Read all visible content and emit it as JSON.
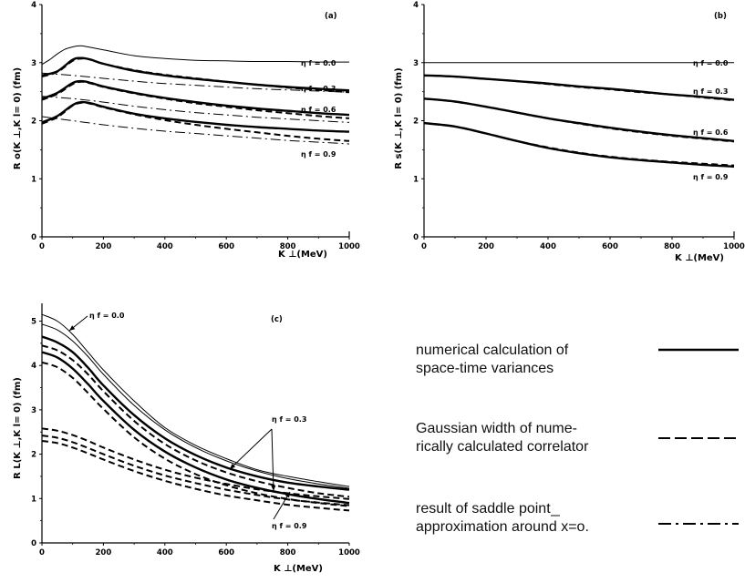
{
  "chart_data": [
    {
      "type": "line",
      "panel_label": "(a)",
      "xlabel": "K ⊥(MeV)",
      "ylabel": "R o(K ⊥,K l= 0) (fm)",
      "xlim": [
        0,
        1000
      ],
      "ylim": [
        0,
        4
      ],
      "x_ticks": [
        "0",
        "200",
        "400",
        "600",
        "800",
        "1000"
      ],
      "y_ticks": [
        "0",
        "1",
        "2",
        "3",
        "4"
      ],
      "annotations": [
        "η f = 0.0",
        "η f = 0.3",
        "η f = 0.6",
        "η f = 0.9"
      ],
      "series": [
        {
          "style": "thin",
          "x": [
            0,
            25,
            50,
            75,
            100,
            125,
            150,
            200,
            300,
            400,
            500,
            600,
            700,
            800,
            900,
            1000
          ],
          "y": [
            2.97,
            3.05,
            3.15,
            3.23,
            3.27,
            3.29,
            3.27,
            3.22,
            3.12,
            3.07,
            3.04,
            3.03,
            3.02,
            3.02,
            3.01,
            3.01
          ]
        },
        {
          "style": "solid",
          "x": [
            0,
            50,
            100,
            130,
            160,
            200,
            300,
            400,
            500,
            600,
            700,
            800,
            900,
            1000
          ],
          "y": [
            2.78,
            2.85,
            3.05,
            3.08,
            3.05,
            2.98,
            2.86,
            2.78,
            2.72,
            2.67,
            2.62,
            2.58,
            2.55,
            2.52
          ]
        },
        {
          "style": "dashed",
          "x": [
            0,
            50,
            100,
            130,
            160,
            200,
            300,
            400,
            500,
            600,
            700,
            800,
            900,
            1000
          ],
          "y": [
            2.76,
            2.84,
            3.03,
            3.07,
            3.05,
            2.98,
            2.87,
            2.79,
            2.73,
            2.67,
            2.62,
            2.57,
            2.53,
            2.49
          ]
        },
        {
          "style": "dashdot",
          "x": [
            0,
            100,
            200,
            300,
            400,
            500,
            600,
            700,
            800,
            900,
            1000
          ],
          "y": [
            2.82,
            2.78,
            2.73,
            2.68,
            2.64,
            2.61,
            2.58,
            2.55,
            2.53,
            2.51,
            2.49
          ]
        },
        {
          "style": "solid",
          "x": [
            0,
            50,
            100,
            130,
            160,
            200,
            300,
            400,
            500,
            600,
            700,
            800,
            900,
            1000
          ],
          "y": [
            2.38,
            2.48,
            2.65,
            2.68,
            2.65,
            2.59,
            2.48,
            2.39,
            2.32,
            2.26,
            2.21,
            2.17,
            2.13,
            2.1
          ]
        },
        {
          "style": "dashed",
          "x": [
            0,
            50,
            100,
            130,
            160,
            200,
            300,
            400,
            500,
            600,
            700,
            800,
            900,
            1000
          ],
          "y": [
            2.36,
            2.46,
            2.63,
            2.67,
            2.64,
            2.58,
            2.47,
            2.38,
            2.3,
            2.24,
            2.18,
            2.13,
            2.08,
            2.04
          ]
        },
        {
          "style": "dashdot",
          "x": [
            0,
            100,
            200,
            300,
            400,
            500,
            600,
            700,
            800,
            900,
            1000
          ],
          "y": [
            2.42,
            2.38,
            2.32,
            2.25,
            2.19,
            2.14,
            2.1,
            2.06,
            2.03,
            2.0,
            1.97
          ]
        },
        {
          "style": "solid",
          "x": [
            0,
            50,
            100,
            130,
            160,
            200,
            300,
            400,
            500,
            600,
            700,
            800,
            900,
            1000
          ],
          "y": [
            1.97,
            2.08,
            2.27,
            2.32,
            2.3,
            2.24,
            2.12,
            2.04,
            1.98,
            1.93,
            1.89,
            1.86,
            1.83,
            1.81
          ]
        },
        {
          "style": "dashed",
          "x": [
            0,
            50,
            100,
            130,
            160,
            200,
            300,
            400,
            500,
            600,
            700,
            800,
            900,
            1000
          ],
          "y": [
            1.95,
            2.06,
            2.26,
            2.31,
            2.29,
            2.23,
            2.11,
            2.01,
            1.93,
            1.86,
            1.8,
            1.74,
            1.69,
            1.65
          ]
        },
        {
          "style": "dashdot",
          "x": [
            0,
            100,
            200,
            300,
            400,
            500,
            600,
            700,
            800,
            900,
            1000
          ],
          "y": [
            2.07,
            2.0,
            1.93,
            1.87,
            1.82,
            1.78,
            1.74,
            1.7,
            1.66,
            1.63,
            1.6
          ]
        }
      ]
    },
    {
      "type": "line",
      "panel_label": "(b)",
      "xlabel": "K ⊥(MeV)",
      "ylabel": "R s(K ⊥,K l= 0) (fm)",
      "xlim": [
        0,
        1000
      ],
      "ylim": [
        0,
        4
      ],
      "x_ticks": [
        "0",
        "200",
        "400",
        "600",
        "800",
        "1000"
      ],
      "y_ticks": [
        "0",
        "1",
        "2",
        "3",
        "4"
      ],
      "annotations": [
        "η f = 0.0",
        "η f = 0.3",
        "η f = 0.6",
        "η f = 0.9"
      ],
      "series": [
        {
          "style": "thin",
          "x": [
            0,
            1000
          ],
          "y": [
            3.0,
            3.0
          ]
        },
        {
          "style": "solid",
          "x": [
            0,
            100,
            200,
            300,
            400,
            500,
            600,
            700,
            800,
            900,
            1000
          ],
          "y": [
            2.78,
            2.76,
            2.72,
            2.68,
            2.64,
            2.59,
            2.55,
            2.5,
            2.45,
            2.41,
            2.36
          ]
        },
        {
          "style": "dashed",
          "x": [
            0,
            100,
            200,
            300,
            400,
            500,
            600,
            700,
            800,
            900,
            1000
          ],
          "y": [
            2.78,
            2.76,
            2.72,
            2.68,
            2.63,
            2.58,
            2.54,
            2.49,
            2.45,
            2.4,
            2.35
          ]
        },
        {
          "style": "solid",
          "x": [
            0,
            100,
            200,
            300,
            400,
            500,
            600,
            700,
            800,
            900,
            1000
          ],
          "y": [
            2.38,
            2.33,
            2.24,
            2.14,
            2.04,
            1.96,
            1.88,
            1.81,
            1.75,
            1.7,
            1.65
          ]
        },
        {
          "style": "dashed",
          "x": [
            0,
            100,
            200,
            300,
            400,
            500,
            600,
            700,
            800,
            900,
            1000
          ],
          "y": [
            2.38,
            2.33,
            2.24,
            2.14,
            2.04,
            1.95,
            1.87,
            1.8,
            1.74,
            1.69,
            1.64
          ]
        },
        {
          "style": "solid",
          "x": [
            0,
            100,
            200,
            300,
            400,
            500,
            600,
            700,
            800,
            900,
            1000
          ],
          "y": [
            1.96,
            1.9,
            1.78,
            1.65,
            1.53,
            1.44,
            1.37,
            1.32,
            1.28,
            1.24,
            1.21
          ]
        },
        {
          "style": "dashed",
          "x": [
            0,
            100,
            200,
            300,
            400,
            500,
            600,
            700,
            800,
            900,
            1000
          ],
          "y": [
            1.96,
            1.9,
            1.78,
            1.65,
            1.54,
            1.45,
            1.38,
            1.33,
            1.29,
            1.26,
            1.23
          ]
        }
      ]
    },
    {
      "type": "line",
      "panel_label": "(c)",
      "xlabel": "K ⊥(MeV)",
      "ylabel": "R L(K ⊥,K l= 0) (fm)",
      "xlim": [
        0,
        1000
      ],
      "ylim": [
        0,
        5.4
      ],
      "x_ticks": [
        "0",
        "200",
        "400",
        "600",
        "800",
        "1000"
      ],
      "y_ticks": [
        "0",
        "1",
        "2",
        "3",
        "4",
        "5"
      ],
      "annotations": [
        "η f = 0.0",
        "η f = 0.3",
        "η f = 0.9"
      ],
      "series": [
        {
          "style": "thin",
          "x": [
            0,
            50,
            100,
            150,
            200,
            300,
            400,
            500,
            600,
            700,
            800,
            900,
            1000
          ],
          "y": [
            5.15,
            5.0,
            4.7,
            4.3,
            3.9,
            3.2,
            2.6,
            2.2,
            1.9,
            1.65,
            1.5,
            1.38,
            1.27
          ]
        },
        {
          "style": "thin",
          "x": [
            0,
            50,
            100,
            150,
            200,
            300,
            400,
            500,
            600,
            700,
            800,
            900,
            1000
          ],
          "y": [
            4.93,
            4.8,
            4.55,
            4.2,
            3.8,
            3.1,
            2.55,
            2.15,
            1.85,
            1.62,
            1.45,
            1.33,
            1.23
          ]
        },
        {
          "style": "solid",
          "x": [
            0,
            50,
            100,
            150,
            200,
            300,
            400,
            500,
            600,
            700,
            800,
            900,
            1000
          ],
          "y": [
            4.65,
            4.52,
            4.3,
            3.95,
            3.55,
            2.88,
            2.36,
            1.98,
            1.7,
            1.5,
            1.36,
            1.27,
            1.2
          ]
        },
        {
          "style": "dashed",
          "x": [
            0,
            50,
            100,
            150,
            200,
            300,
            400,
            500,
            600,
            700,
            800,
            900,
            1000
          ],
          "y": [
            4.45,
            4.34,
            4.12,
            3.8,
            3.42,
            2.75,
            2.23,
            1.86,
            1.59,
            1.39,
            1.24,
            1.12,
            1.04
          ]
        },
        {
          "style": "solid",
          "x": [
            0,
            50,
            100,
            150,
            200,
            300,
            400,
            500,
            600,
            700,
            800,
            900,
            1000
          ],
          "y": [
            4.3,
            4.18,
            3.93,
            3.58,
            3.2,
            2.55,
            2.06,
            1.7,
            1.43,
            1.24,
            1.1,
            0.99,
            0.9
          ]
        },
        {
          "style": "dashed",
          "x": [
            0,
            50,
            100,
            150,
            200,
            300,
            400,
            500,
            600,
            700,
            800,
            900,
            1000
          ],
          "y": [
            4.07,
            3.96,
            3.72,
            3.38,
            3.02,
            2.38,
            1.9,
            1.55,
            1.3,
            1.12,
            0.99,
            0.9,
            0.83
          ]
        },
        {
          "style": "dashed",
          "x": [
            0,
            50,
            100,
            150,
            200,
            300,
            400,
            500,
            600,
            700,
            800,
            900,
            1000
          ],
          "y": [
            2.58,
            2.53,
            2.43,
            2.3,
            2.15,
            1.88,
            1.65,
            1.47,
            1.33,
            1.21,
            1.12,
            1.05,
            0.99
          ]
        },
        {
          "style": "dashed",
          "x": [
            0,
            50,
            100,
            150,
            200,
            300,
            400,
            500,
            600,
            700,
            800,
            900,
            1000
          ],
          "y": [
            2.42,
            2.37,
            2.27,
            2.14,
            2.0,
            1.74,
            1.52,
            1.35,
            1.2,
            1.08,
            0.98,
            0.91,
            0.85
          ]
        },
        {
          "style": "dashed",
          "x": [
            0,
            50,
            100,
            150,
            200,
            300,
            400,
            500,
            600,
            700,
            800,
            900,
            1000
          ],
          "y": [
            2.3,
            2.25,
            2.15,
            2.02,
            1.88,
            1.62,
            1.4,
            1.22,
            1.07,
            0.96,
            0.86,
            0.79,
            0.73
          ]
        }
      ]
    }
  ],
  "legend": [
    {
      "text": "numerical calculation of\nspace-time variances",
      "style": "solid"
    },
    {
      "text": "Gaussian width of nume-\nrically calculated correlator",
      "style": "dashed"
    },
    {
      "text": "result of saddle point\napproximation around x=o.",
      "style": "dashdot"
    }
  ]
}
